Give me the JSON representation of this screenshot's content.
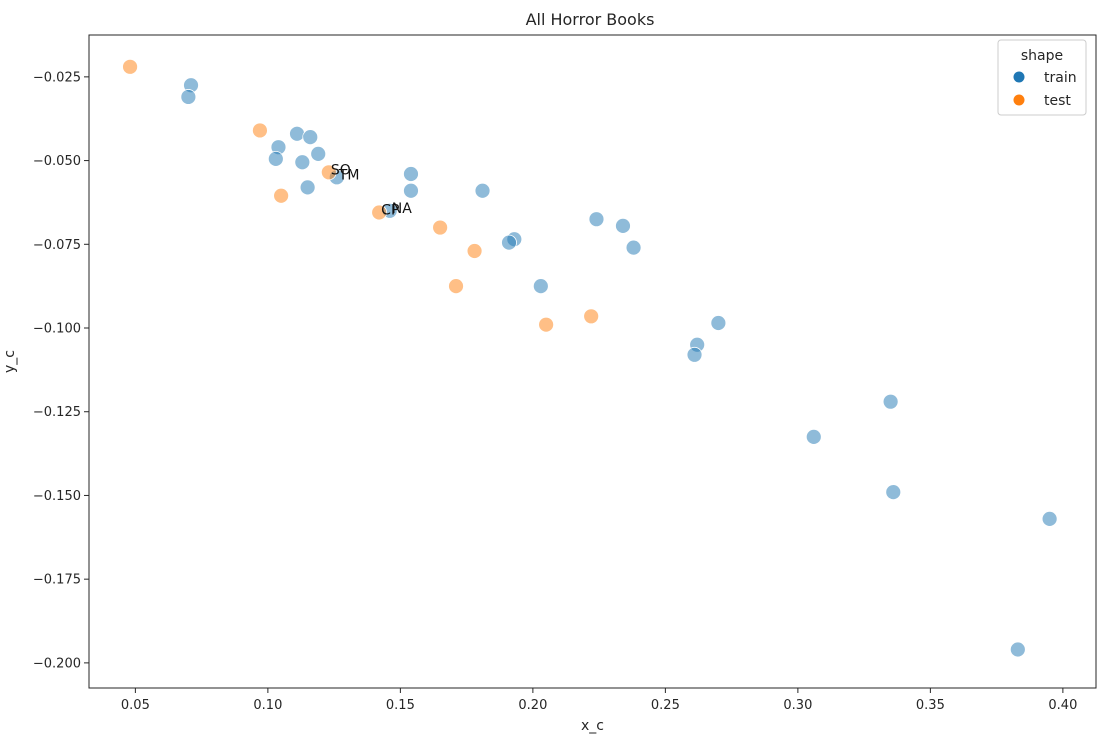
{
  "chart_data": {
    "type": "scatter",
    "title": "All Horror Books",
    "xlabel": "x_c",
    "ylabel": "y_c",
    "xlim": [
      0.0325,
      0.4125
    ],
    "ylim": [
      -0.2075,
      -0.0125
    ],
    "x_ticks": [
      0.05,
      0.1,
      0.15,
      0.2,
      0.25,
      0.3,
      0.35,
      0.4
    ],
    "x_tick_labels": [
      "0.05",
      "0.10",
      "0.15",
      "0.20",
      "0.25",
      "0.30",
      "0.35",
      "0.40"
    ],
    "y_ticks": [
      -0.025,
      -0.05,
      -0.075,
      -0.1,
      -0.125,
      -0.15,
      -0.175,
      -0.2
    ],
    "y_tick_labels": [
      "−0.025",
      "−0.050",
      "−0.075",
      "−0.100",
      "−0.125",
      "−0.150",
      "−0.175",
      "−0.200"
    ],
    "grid": false,
    "legend": {
      "title": "shape",
      "position": "top-right"
    },
    "series": [
      {
        "name": "train",
        "color": "#1f77b4",
        "points": [
          [
            0.071,
            -0.0275
          ],
          [
            0.07,
            -0.031
          ],
          [
            0.111,
            -0.042
          ],
          [
            0.116,
            -0.043
          ],
          [
            0.104,
            -0.046
          ],
          [
            0.119,
            -0.048
          ],
          [
            0.103,
            -0.0495
          ],
          [
            0.113,
            -0.0505
          ],
          [
            0.154,
            -0.054
          ],
          [
            0.126,
            -0.055
          ],
          [
            0.115,
            -0.058
          ],
          [
            0.154,
            -0.059
          ],
          [
            0.181,
            -0.059
          ],
          [
            0.146,
            -0.065
          ],
          [
            0.224,
            -0.0675
          ],
          [
            0.234,
            -0.0695
          ],
          [
            0.193,
            -0.0735
          ],
          [
            0.191,
            -0.0745
          ],
          [
            0.238,
            -0.076
          ],
          [
            0.203,
            -0.0875
          ],
          [
            0.27,
            -0.0985
          ],
          [
            0.262,
            -0.105
          ],
          [
            0.261,
            -0.108
          ],
          [
            0.335,
            -0.122
          ],
          [
            0.306,
            -0.1325
          ],
          [
            0.336,
            -0.149
          ],
          [
            0.395,
            -0.157
          ],
          [
            0.383,
            -0.196
          ]
        ]
      },
      {
        "name": "test",
        "color": "#ff7f0e",
        "points": [
          [
            0.048,
            -0.022
          ],
          [
            0.097,
            -0.041
          ],
          [
            0.123,
            -0.0535
          ],
          [
            0.105,
            -0.0605
          ],
          [
            0.142,
            -0.0655
          ],
          [
            0.165,
            -0.07
          ],
          [
            0.178,
            -0.077
          ],
          [
            0.171,
            -0.0875
          ],
          [
            0.222,
            -0.0965
          ],
          [
            0.205,
            -0.099
          ]
        ]
      }
    ],
    "annotations": [
      {
        "text": "SO",
        "x": 0.123,
        "y": -0.0535
      },
      {
        "text": "TM",
        "x": 0.126,
        "y": -0.055
      },
      {
        "text": "NA",
        "x": 0.146,
        "y": -0.065
      },
      {
        "text": "CP",
        "x": 0.142,
        "y": -0.0655
      }
    ]
  }
}
